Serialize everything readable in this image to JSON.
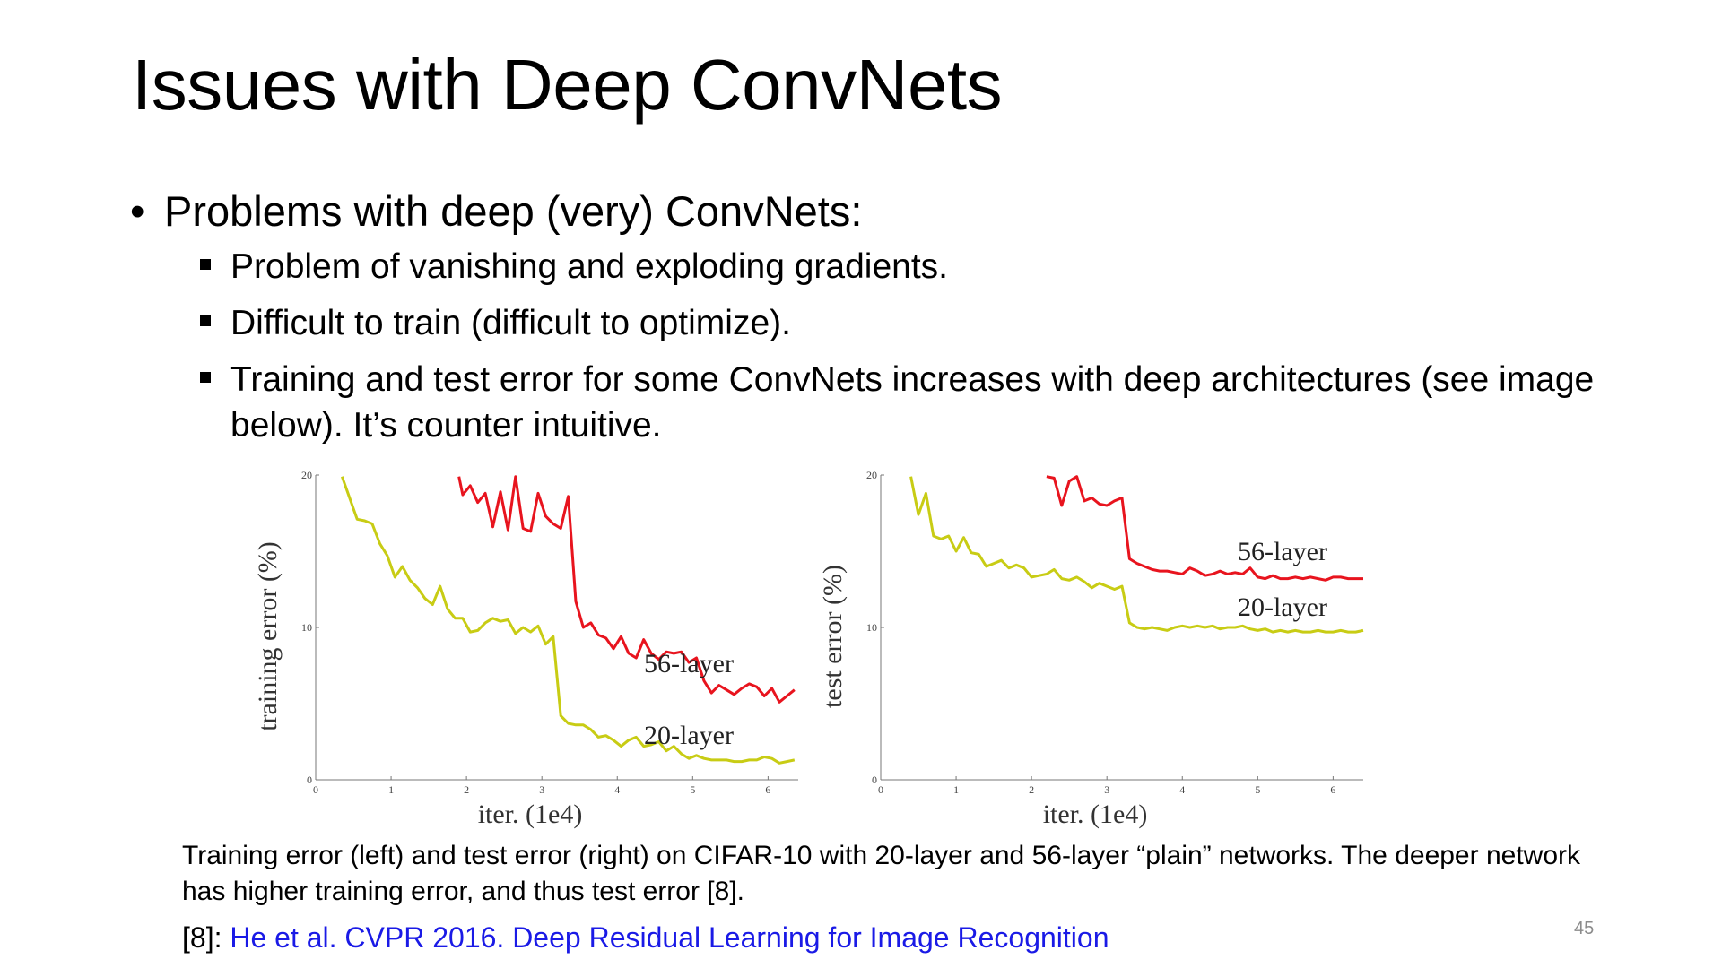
{
  "slide": {
    "title": "Issues with Deep ConvNets",
    "bullet": "Problems with deep (very) ConvNets:",
    "sub_bullets": [
      "Problem of vanishing and exploding gradients.",
      "Difficult to train (difficult to optimize).",
      "Training and test error for some ConvNets increases with deep architectures (see image below). It’s counter intuitive."
    ],
    "caption": "Training error (left) and test error (right) on CIFAR-10 with 20-layer and 56-layer “plain” networks. The deeper network has higher training error, and thus test error [8].",
    "reference_prefix": "[8]: ",
    "reference_link": "He et al. CVPR 2016. Deep Residual Learning for Image Recognition",
    "slide_number": "45"
  },
  "chart_data": [
    {
      "type": "line",
      "xlabel": "iter. (1e4)",
      "ylabel": "training error (%)",
      "xlim": [
        0,
        6.4
      ],
      "ylim": [
        0,
        20
      ],
      "xticks": [
        0,
        1,
        2,
        3,
        4,
        5,
        6
      ],
      "yticks": [
        0,
        10,
        20
      ],
      "series": [
        {
          "name": "56-layer",
          "color": "#e8141e",
          "x": [
            1.9,
            1.95,
            2.05,
            2.15,
            2.25,
            2.35,
            2.45,
            2.55,
            2.65,
            2.75,
            2.85,
            2.95,
            3.05,
            3.15,
            3.25,
            3.35,
            3.45,
            3.55,
            3.65,
            3.75,
            3.85,
            3.95,
            4.05,
            4.15,
            4.25,
            4.35,
            4.45,
            4.55,
            4.65,
            4.75,
            4.85,
            4.95,
            5.05,
            5.15,
            5.25,
            5.35,
            5.45,
            5.55,
            5.65,
            5.75,
            5.85,
            5.95,
            6.05,
            6.15,
            6.25,
            6.35
          ],
          "y": [
            19.9,
            18.7,
            19.3,
            18.2,
            18.8,
            16.6,
            18.9,
            16.4,
            19.9,
            16.5,
            16.3,
            18.8,
            17.3,
            16.8,
            16.5,
            18.6,
            11.7,
            10.0,
            10.3,
            9.5,
            9.3,
            8.6,
            9.4,
            8.3,
            8.0,
            9.2,
            8.3,
            7.9,
            8.4,
            8.3,
            8.4,
            7.7,
            8.0,
            6.5,
            5.7,
            6.2,
            5.9,
            5.6,
            6.0,
            6.3,
            6.1,
            5.5,
            6.0,
            5.1,
            5.5,
            5.9
          ]
        },
        {
          "name": "20-layer",
          "color": "#c8cc14",
          "x": [
            0.35,
            0.45,
            0.55,
            0.65,
            0.75,
            0.85,
            0.95,
            1.05,
            1.15,
            1.25,
            1.35,
            1.45,
            1.55,
            1.65,
            1.75,
            1.85,
            1.95,
            2.05,
            2.15,
            2.25,
            2.35,
            2.45,
            2.55,
            2.65,
            2.75,
            2.85,
            2.95,
            3.05,
            3.15,
            3.25,
            3.35,
            3.45,
            3.55,
            3.65,
            3.75,
            3.85,
            3.95,
            4.05,
            4.15,
            4.25,
            4.35,
            4.45,
            4.55,
            4.65,
            4.75,
            4.85,
            4.95,
            5.05,
            5.15,
            5.25,
            5.35,
            5.45,
            5.55,
            5.65,
            5.75,
            5.85,
            5.95,
            6.05,
            6.15,
            6.25,
            6.35
          ],
          "y": [
            19.9,
            18.5,
            17.1,
            17.0,
            16.8,
            15.5,
            14.7,
            13.3,
            14.0,
            13.1,
            12.6,
            11.9,
            11.5,
            12.7,
            11.2,
            10.6,
            10.6,
            9.7,
            9.8,
            10.3,
            10.6,
            10.4,
            10.5,
            9.6,
            10.0,
            9.7,
            10.1,
            8.9,
            9.4,
            4.2,
            3.7,
            3.6,
            3.6,
            3.3,
            2.8,
            2.9,
            2.6,
            2.2,
            2.6,
            2.8,
            2.2,
            2.3,
            2.5,
            1.9,
            2.2,
            1.7,
            1.4,
            1.6,
            1.4,
            1.3,
            1.3,
            1.3,
            1.2,
            1.2,
            1.3,
            1.3,
            1.5,
            1.4,
            1.1,
            1.2,
            1.3
          ]
        }
      ]
    },
    {
      "type": "line",
      "xlabel": "iter. (1e4)",
      "ylabel": "test error (%)",
      "xlim": [
        0,
        6.4
      ],
      "ylim": [
        0,
        20
      ],
      "xticks": [
        0,
        1,
        2,
        3,
        4,
        5,
        6
      ],
      "yticks": [
        0,
        10,
        20
      ],
      "series": [
        {
          "name": "56-layer",
          "color": "#e8141e",
          "x": [
            2.2,
            2.3,
            2.4,
            2.5,
            2.6,
            2.7,
            2.8,
            2.9,
            3.0,
            3.1,
            3.2,
            3.3,
            3.4,
            3.5,
            3.6,
            3.7,
            3.8,
            3.9,
            4.0,
            4.1,
            4.2,
            4.3,
            4.4,
            4.5,
            4.6,
            4.7,
            4.8,
            4.9,
            5.0,
            5.1,
            5.2,
            5.3,
            5.4,
            5.5,
            5.6,
            5.7,
            5.8,
            5.9,
            6.0,
            6.1,
            6.2,
            6.3,
            6.4
          ],
          "y": [
            19.9,
            19.8,
            18.0,
            19.6,
            19.9,
            18.3,
            18.5,
            18.1,
            18.0,
            18.3,
            18.5,
            14.5,
            14.2,
            14.0,
            13.8,
            13.7,
            13.7,
            13.6,
            13.5,
            13.9,
            13.7,
            13.4,
            13.5,
            13.7,
            13.5,
            13.6,
            13.5,
            13.9,
            13.3,
            13.2,
            13.4,
            13.2,
            13.2,
            13.3,
            13.2,
            13.3,
            13.2,
            13.1,
            13.3,
            13.3,
            13.2,
            13.2,
            13.2
          ]
        },
        {
          "name": "20-layer",
          "color": "#c8cc14",
          "x": [
            0.4,
            0.5,
            0.6,
            0.7,
            0.8,
            0.9,
            1.0,
            1.1,
            1.2,
            1.3,
            1.4,
            1.5,
            1.6,
            1.7,
            1.8,
            1.9,
            2.0,
            2.1,
            2.2,
            2.3,
            2.4,
            2.5,
            2.6,
            2.7,
            2.8,
            2.9,
            3.0,
            3.1,
            3.2,
            3.3,
            3.4,
            3.5,
            3.6,
            3.7,
            3.8,
            3.9,
            4.0,
            4.1,
            4.2,
            4.3,
            4.4,
            4.5,
            4.6,
            4.7,
            4.8,
            4.9,
            5.0,
            5.1,
            5.2,
            5.3,
            5.4,
            5.5,
            5.6,
            5.7,
            5.8,
            5.9,
            6.0,
            6.1,
            6.2,
            6.3,
            6.4
          ],
          "y": [
            19.9,
            17.4,
            18.8,
            16.0,
            15.8,
            16.0,
            15.0,
            15.9,
            14.9,
            14.8,
            14.0,
            14.2,
            14.4,
            13.9,
            14.1,
            13.9,
            13.3,
            13.4,
            13.5,
            13.8,
            13.2,
            13.1,
            13.3,
            13.0,
            12.6,
            12.9,
            12.7,
            12.5,
            12.7,
            10.3,
            10.0,
            9.9,
            10.0,
            9.9,
            9.8,
            10.0,
            10.1,
            10.0,
            10.1,
            10.0,
            10.1,
            9.9,
            10.0,
            10.0,
            10.1,
            9.9,
            9.8,
            9.9,
            9.7,
            9.8,
            9.7,
            9.8,
            9.7,
            9.7,
            9.8,
            9.7,
            9.7,
            9.8,
            9.7,
            9.7,
            9.8
          ]
        }
      ]
    }
  ]
}
